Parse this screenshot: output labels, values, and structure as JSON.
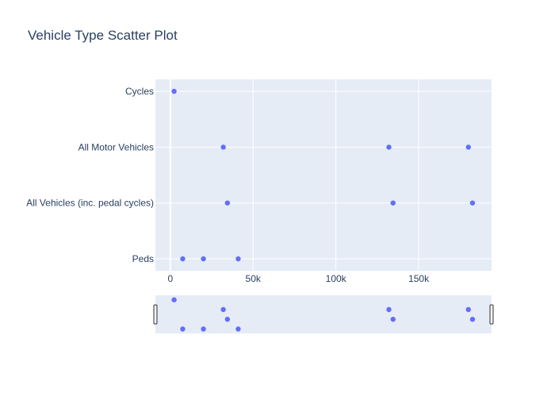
{
  "chart_data": {
    "type": "scatter",
    "title": "Vehicle Type Scatter Plot",
    "xlabel": "",
    "ylabel": "",
    "categories": [
      "Peds",
      "All Vehicles (inc. pedal cycles)",
      "All Motor Vehicles",
      "Cycles"
    ],
    "x_ticks": [
      0,
      50000,
      100000,
      150000
    ],
    "x_tick_labels": [
      "0",
      "50k",
      "100k",
      "150k"
    ],
    "xlim": [
      -9000,
      194000
    ],
    "grid": true,
    "legend": "none",
    "rangeslider": true,
    "colors": {
      "marker": "#636efa",
      "plot_bg": "#e5ecf6",
      "grid": "#ffffff",
      "text": "#2a3f5f"
    },
    "points": [
      {
        "x": 2300,
        "y": "Cycles"
      },
      {
        "x": 32000,
        "y": "All Motor Vehicles"
      },
      {
        "x": 132000,
        "y": "All Motor Vehicles"
      },
      {
        "x": 180000,
        "y": "All Motor Vehicles"
      },
      {
        "x": 34500,
        "y": "All Vehicles (inc. pedal cycles)"
      },
      {
        "x": 134500,
        "y": "All Vehicles (inc. pedal cycles)"
      },
      {
        "x": 182500,
        "y": "All Vehicles (inc. pedal cycles)"
      },
      {
        "x": 7500,
        "y": "Peds"
      },
      {
        "x": 20000,
        "y": "Peds"
      },
      {
        "x": 41000,
        "y": "Peds"
      }
    ]
  }
}
